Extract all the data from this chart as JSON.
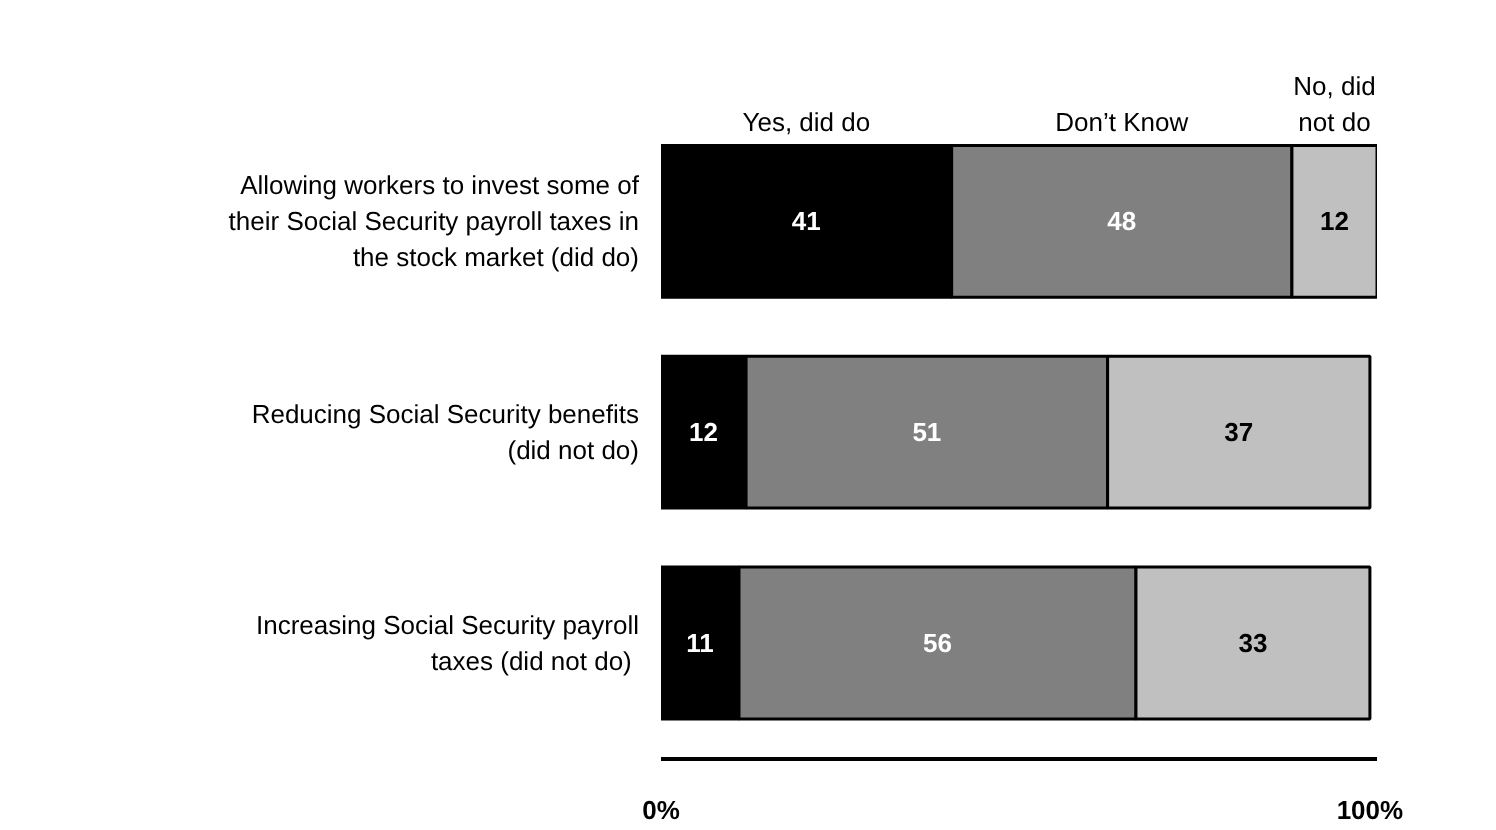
{
  "chart_data": {
    "type": "bar",
    "orientation": "horizontal",
    "stacked": true,
    "data_labels": true,
    "legend": false,
    "grid": false,
    "categories": [
      "Allowing workers to invest some of their Social Security payroll taxes in the stock market (did do)",
      "Reducing Social Security benefits  (did not do)",
      "Increasing Social Security payroll taxes  (did not do)"
    ],
    "series": [
      {
        "name": "Yes, did do",
        "color": "#000000",
        "values": [
          41,
          12,
          11
        ]
      },
      {
        "name": "Don’t Know",
        "color": "#808080",
        "values": [
          48,
          51,
          56
        ]
      },
      {
        "name": "No, did not do",
        "color": "#c0c0c0",
        "values": [
          12,
          37,
          33
        ]
      }
    ],
    "xlim": [
      0,
      101
    ],
    "xticks": [
      {
        "value": 0,
        "label": "0%"
      },
      {
        "value": 100,
        "label": "100%"
      }
    ]
  }
}
